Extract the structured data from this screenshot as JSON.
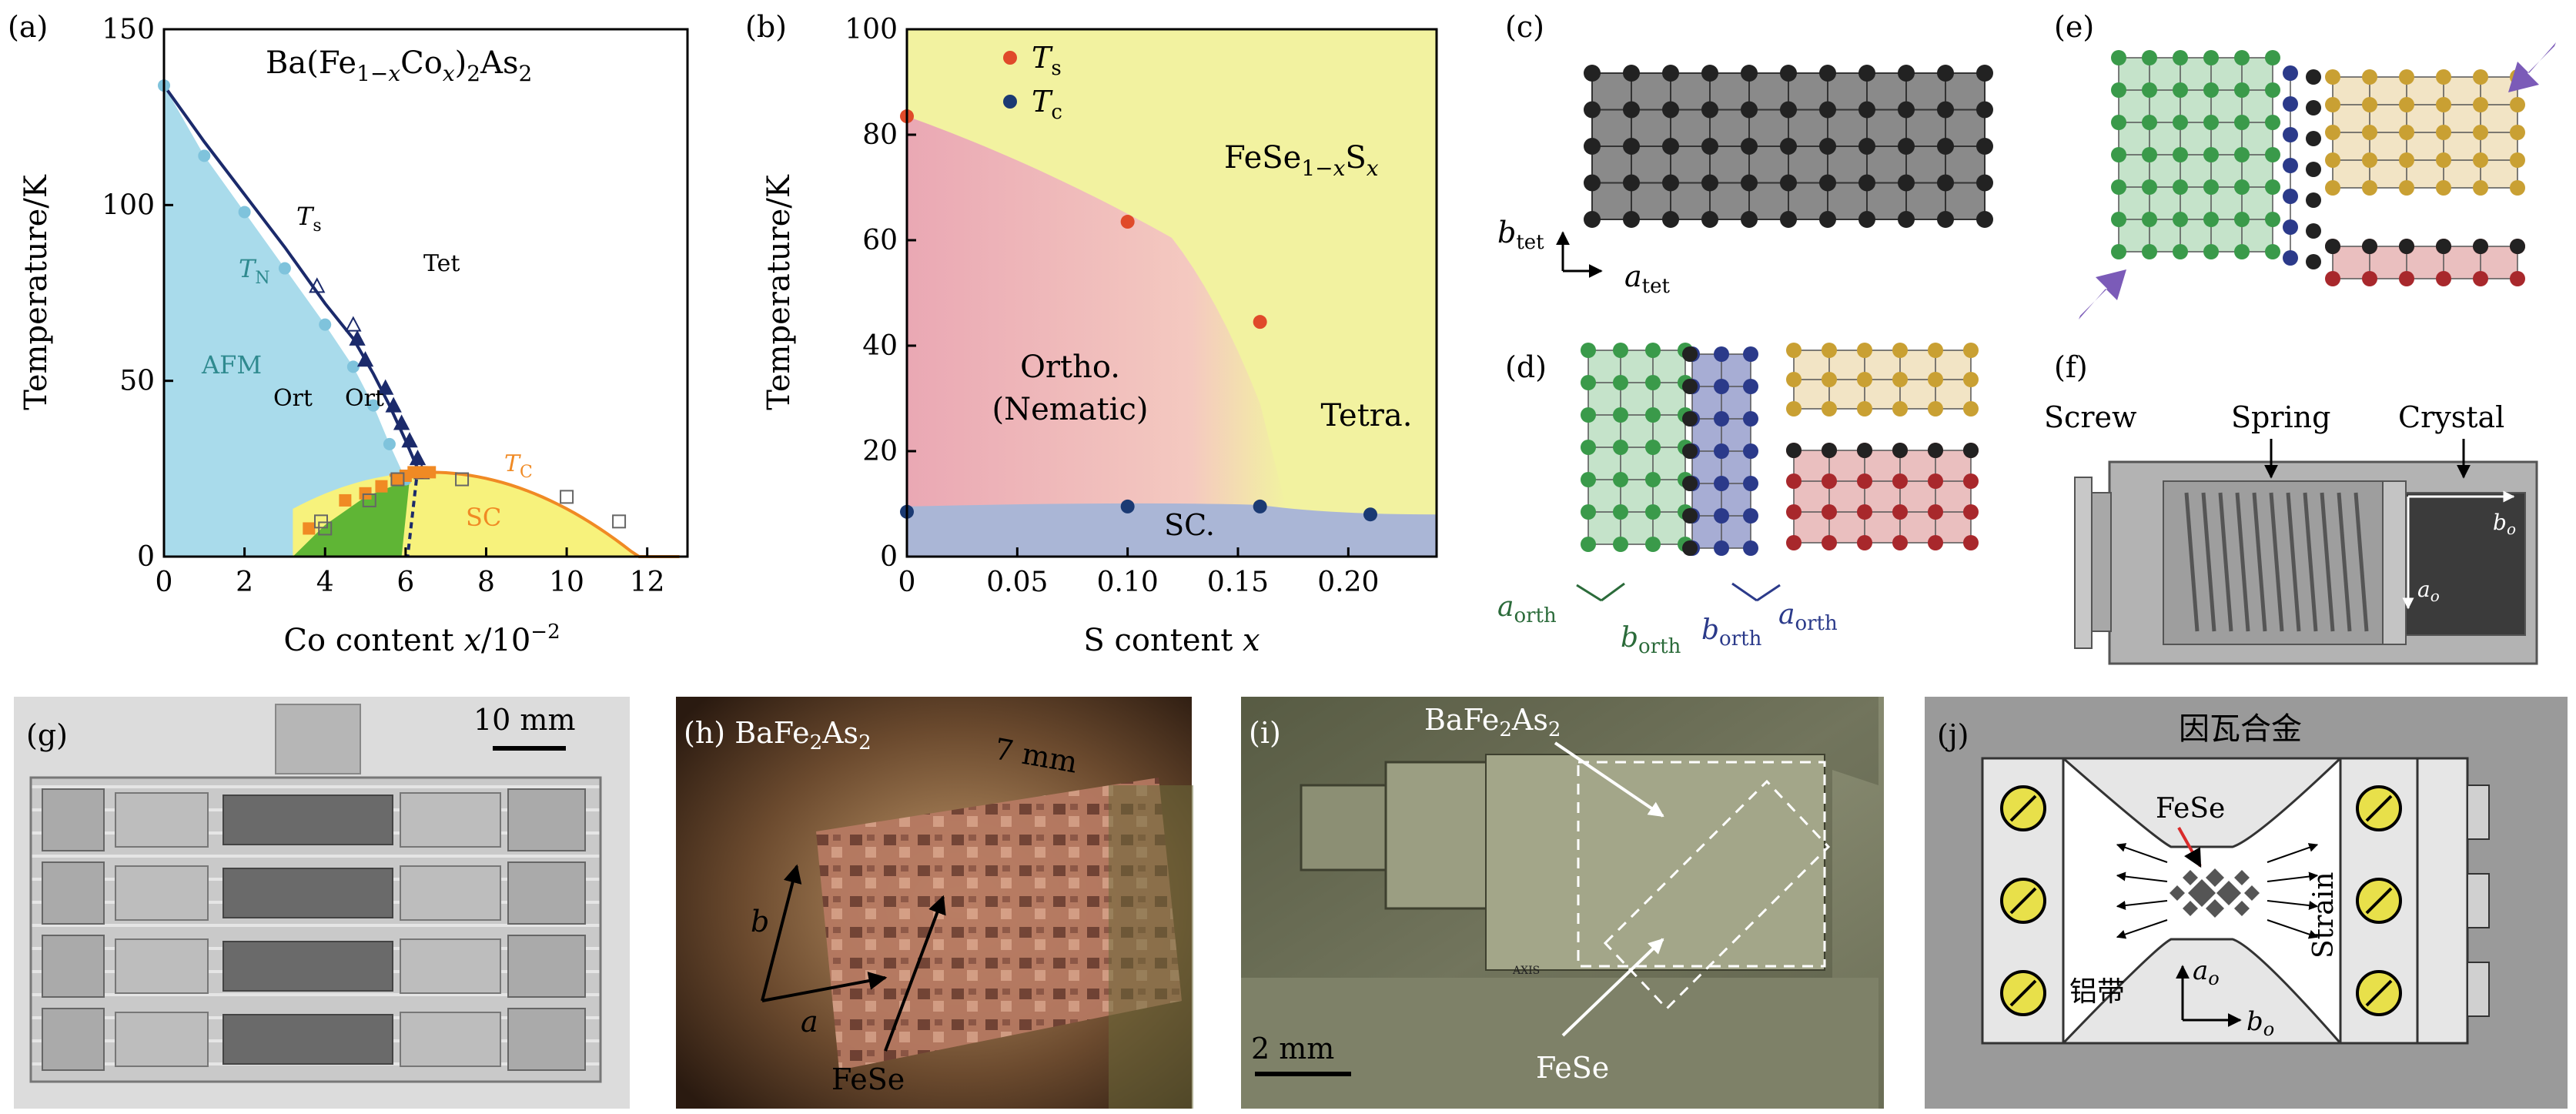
{
  "panel_labels": {
    "a": "(a)",
    "b": "(b)",
    "c": "(c)",
    "d": "(d)",
    "e": "(e)",
    "f": "(f)",
    "g": "(g)",
    "h": "(h)",
    "i": "(i)",
    "j": "(j)"
  },
  "colors": {
    "afm_blue": "#a9dbeb",
    "sc_green": "#5fb535",
    "sc_yellow": "#f7f27c",
    "ts_navy": "#1b2a6b",
    "tc_orange": "#f08a24",
    "nematic_pink": "#f2bdbd",
    "tetra_yellow": "#f2f2a0",
    "sc_lavender": "#aab6d6",
    "atom_black": "#222222",
    "atom_green": "#3a9a4a",
    "atom_navy": "#2b3a8a",
    "atom_gold": "#c9a033",
    "atom_red": "#a8282c",
    "arrow_purple": "#7b5bb8",
    "yellow_screw": "#e8e04a",
    "frame_grey": "#9a9a9a"
  },
  "chart_data": [
    {
      "type": "scatter",
      "title": "Ba(Fe1−xCox)2As2",
      "xlabel": "Co content x/10−2",
      "ylabel": "Temperature/K",
      "xlim": [
        0,
        13
      ],
      "ylim": [
        0,
        150
      ],
      "xticks": [
        "0",
        "2",
        "4",
        "6",
        "8",
        "10",
        "12"
      ],
      "yticks": [
        "0",
        "50",
        "100",
        "150"
      ],
      "region_labels": {
        "tn": "TN",
        "ts": "Ts",
        "tet": "Tet",
        "afm": "AFM",
        "ort1": "Ort",
        "ort2": "Ort",
        "tc": "TC",
        "sc": "SC"
      },
      "series": [
        {
          "name": "Ts",
          "x": [
            0,
            1,
            2,
            3,
            4,
            4.7,
            5.2,
            5.6,
            6.0,
            6.3
          ],
          "y": [
            134,
            118,
            103,
            88,
            72,
            62,
            52,
            43,
            33,
            25
          ]
        },
        {
          "name": "TN",
          "x": [
            0,
            1,
            2,
            3,
            4,
            4.7,
            5.2,
            5.6,
            6.0
          ],
          "y": [
            134,
            114,
            98,
            82,
            66,
            54,
            43,
            32,
            22
          ]
        },
        {
          "name": "Ts data",
          "x": [
            3.8,
            4.7,
            4.8,
            5.0,
            5.5,
            5.7,
            5.9,
            6.1,
            6.3,
            6.4
          ],
          "y": [
            77,
            66,
            62,
            56,
            48,
            43,
            38,
            33,
            28,
            24
          ]
        },
        {
          "name": "Tc data",
          "x": [
            3.6,
            4.5,
            5.0,
            5.4,
            5.8,
            6.0,
            6.2,
            6.4,
            6.6
          ],
          "y": [
            8,
            16,
            18,
            20,
            22,
            23,
            24,
            24,
            24
          ]
        },
        {
          "name": "Tc open",
          "x": [
            3.9,
            4.0,
            5.1,
            5.8,
            7.4,
            10.0,
            11.3
          ],
          "y": [
            10,
            8,
            16,
            22,
            22,
            17,
            10
          ]
        }
      ]
    },
    {
      "type": "scatter",
      "title": "FeSe1−xSx",
      "xlabel": "S content x",
      "ylabel": "Temperature/K",
      "xlim": [
        0,
        0.24
      ],
      "ylim": [
        0,
        100
      ],
      "xticks": [
        "0",
        "0.05",
        "0.10",
        "0.15",
        "0.20"
      ],
      "yticks": [
        "0",
        "20",
        "40",
        "60",
        "80",
        "100"
      ],
      "region_labels": {
        "ortho": "Ortho.",
        "nematic": "(Nematic)",
        "tetra": "Tetra.",
        "sc": "SC."
      },
      "series": [
        {
          "name": "Ts",
          "x": [
            0,
            0.1,
            0.16
          ],
          "y": [
            83.5,
            63.5,
            44.5
          ]
        },
        {
          "name": "Tc",
          "x": [
            0,
            0.1,
            0.16,
            0.21
          ],
          "y": [
            8.5,
            9.5,
            9.5,
            8.0
          ]
        }
      ]
    }
  ],
  "panel_c": {
    "b_label": "b",
    "b_sub": "tet",
    "a_label": "a",
    "a_sub": "tet"
  },
  "panel_d": {
    "a_orth": "a",
    "b_orth": "b",
    "sub": "orth"
  },
  "panel_f": {
    "screw": "Screw",
    "spring": "Spring",
    "crystal": "Crystal",
    "bo": "b",
    "ao": "a",
    "o_sub": "o"
  },
  "panel_g": {
    "scale": "10 mm"
  },
  "panel_h": {
    "title": "BaFe2As2",
    "scale": "7 mm",
    "a": "a",
    "b": "b",
    "fese": "FeSe"
  },
  "panel_i": {
    "bafe": "BaFe2As2",
    "fese": "FeSe",
    "scale": "2 mm",
    "brand": "AXIS"
  },
  "panel_j": {
    "title": "因瓦合金",
    "fese": "FeSe",
    "strain": "Strain",
    "band": "铝带",
    "ao": "a",
    "bo": "b",
    "o_sub": "o"
  }
}
